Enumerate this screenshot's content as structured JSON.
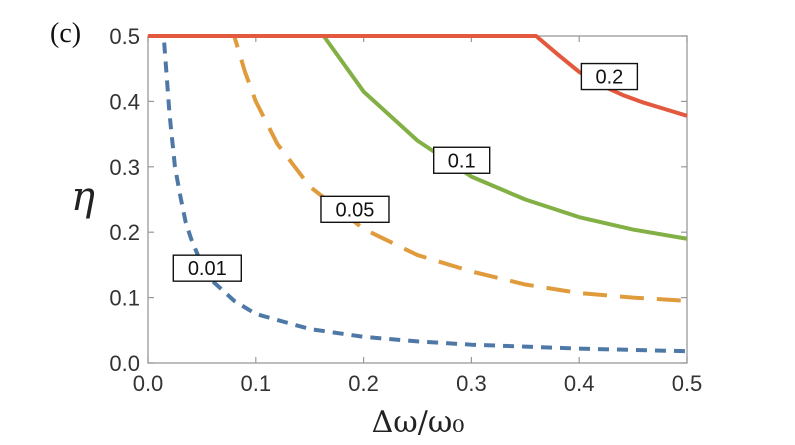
{
  "panel_label": "(c)",
  "chart_data": {
    "type": "line",
    "title": "",
    "xlabel": "Δω/ω₀",
    "ylabel": "η",
    "xlim": [
      0,
      0.5
    ],
    "ylim": [
      0,
      0.5
    ],
    "xticks": [
      0.0,
      0.1,
      0.2,
      0.3,
      0.4,
      0.5
    ],
    "xtick_labels": [
      "0.0",
      "0.1",
      "0.2",
      "0.3",
      "0.4",
      "0.5"
    ],
    "yticks": [
      0.0,
      0.1,
      0.2,
      0.3,
      0.4,
      0.5
    ],
    "ytick_labels": [
      "0.0",
      "0.1",
      "0.2",
      "0.3",
      "0.4",
      "0.5"
    ],
    "grid": false,
    "series": [
      {
        "name": "0.01",
        "color": "#4e79a7",
        "style": "short-dash",
        "x": [
          0.015,
          0.02,
          0.025,
          0.03,
          0.035,
          0.04,
          0.05,
          0.06,
          0.08,
          0.1,
          0.15,
          0.2,
          0.25,
          0.3,
          0.35,
          0.4,
          0.45,
          0.5
        ],
        "y": [
          0.49,
          0.38,
          0.3,
          0.255,
          0.215,
          0.19,
          0.15,
          0.125,
          0.095,
          0.075,
          0.052,
          0.04,
          0.033,
          0.028,
          0.025,
          0.022,
          0.02,
          0.018
        ],
        "label_at": [
          0.055,
          0.145
        ]
      },
      {
        "name": "0.05",
        "color": "#e09b3d",
        "style": "long-dash",
        "x": [
          0.0,
          0.08,
          0.09,
          0.1,
          0.12,
          0.15,
          0.2,
          0.25,
          0.3,
          0.35,
          0.4,
          0.45,
          0.5
        ],
        "y": [
          0.5,
          0.5,
          0.445,
          0.4,
          0.335,
          0.27,
          0.205,
          0.165,
          0.14,
          0.12,
          0.107,
          0.1,
          0.095
        ],
        "label_at": [
          0.192,
          0.235
        ]
      },
      {
        "name": "0.1",
        "color": "#82b045",
        "style": "solid",
        "x": [
          0.0,
          0.163,
          0.2,
          0.25,
          0.3,
          0.35,
          0.4,
          0.45,
          0.5
        ],
        "y": [
          0.5,
          0.5,
          0.415,
          0.34,
          0.285,
          0.25,
          0.223,
          0.204,
          0.19
        ],
        "label_at": [
          0.291,
          0.31
        ]
      },
      {
        "name": "0.2",
        "color": "#e3593d",
        "style": "solid",
        "x": [
          0.0,
          0.36,
          0.38,
          0.4,
          0.42,
          0.44,
          0.46,
          0.48,
          0.5
        ],
        "y": [
          0.5,
          0.5,
          0.472,
          0.445,
          0.425,
          0.41,
          0.398,
          0.388,
          0.378
        ],
        "label_at": [
          0.428,
          0.438
        ]
      }
    ]
  }
}
